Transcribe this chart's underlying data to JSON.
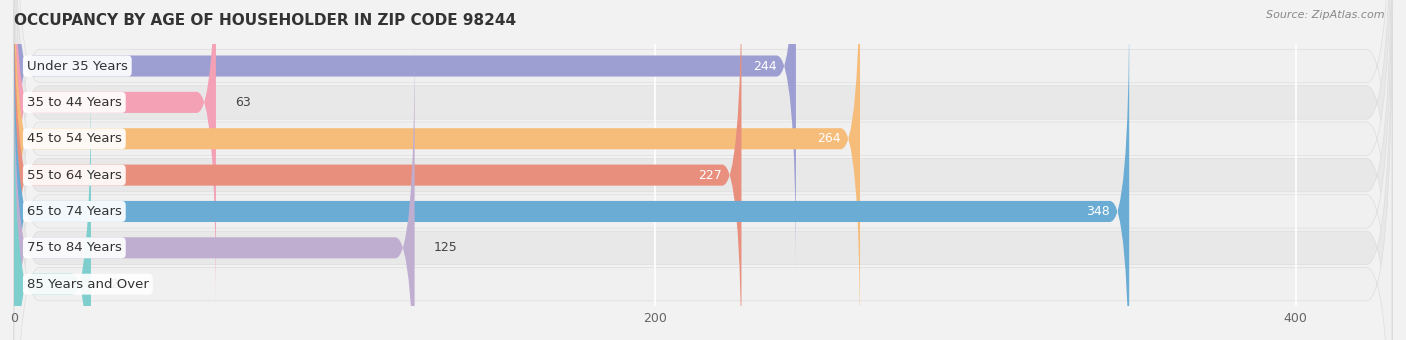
{
  "title": "OCCUPANCY BY AGE OF HOUSEHOLDER IN ZIP CODE 98244",
  "source": "Source: ZipAtlas.com",
  "categories": [
    "Under 35 Years",
    "35 to 44 Years",
    "45 to 54 Years",
    "55 to 64 Years",
    "65 to 74 Years",
    "75 to 84 Years",
    "85 Years and Over"
  ],
  "values": [
    244,
    63,
    264,
    227,
    348,
    125,
    24
  ],
  "bar_colors": [
    "#9d9fd3",
    "#f4a0b5",
    "#f5bc7a",
    "#e88f7e",
    "#6aacd4",
    "#c0aed0",
    "#7ecece"
  ],
  "xlim": [
    0,
    430
  ],
  "xticks": [
    0,
    200,
    400
  ],
  "bar_height": 0.58,
  "outer_bg": "#f2f2f2",
  "row_bg": "#e8e8e8",
  "row_bg2": "#f0f0f0",
  "title_fontsize": 11,
  "label_fontsize": 9.5,
  "value_fontsize": 9
}
